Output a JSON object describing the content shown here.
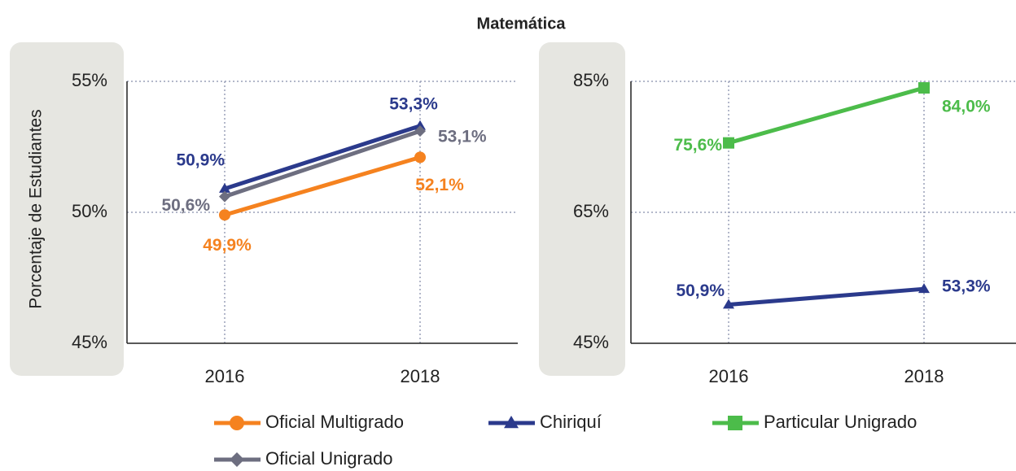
{
  "title": "Matemática",
  "chart_data": [
    {
      "type": "line",
      "ylabel": "Porcentaje de Estudiantes",
      "categories": [
        "2016",
        "2018"
      ],
      "ylim": [
        45,
        55
      ],
      "yticks": [
        {
          "value": 45,
          "label": "45%"
        },
        {
          "value": 50,
          "label": "50%"
        },
        {
          "value": 55,
          "label": "55%"
        }
      ],
      "grid": true,
      "series": [
        {
          "name": "Oficial Multigrado",
          "color": "#f5821f",
          "marker": "circle",
          "values": [
            49.9,
            52.1
          ],
          "value_labels": [
            "49,9%",
            "52,1%"
          ]
        },
        {
          "name": "Chiriquí",
          "color": "#2b3a8c",
          "marker": "triangle",
          "values": [
            50.9,
            53.3
          ],
          "value_labels": [
            "50,9%",
            "53,3%"
          ]
        },
        {
          "name": "Oficial Unigrado",
          "color": "#6d6e80",
          "marker": "diamond",
          "values": [
            50.6,
            53.1
          ],
          "value_labels": [
            "50,6%",
            "53,1%"
          ]
        }
      ]
    },
    {
      "type": "line",
      "categories": [
        "2016",
        "2018"
      ],
      "ylim": [
        45,
        85
      ],
      "yticks": [
        {
          "value": 45,
          "label": "45%"
        },
        {
          "value": 65,
          "label": "65%"
        },
        {
          "value": 85,
          "label": "85%"
        }
      ],
      "grid": true,
      "series": [
        {
          "name": "Chiriquí",
          "color": "#2b3a8c",
          "marker": "triangle",
          "values": [
            50.9,
            53.3
          ],
          "value_labels": [
            "50,9%",
            "53,3%"
          ]
        },
        {
          "name": "Particular Unigrado",
          "color": "#4cbc4a",
          "marker": "square",
          "values": [
            75.6,
            84.0
          ],
          "value_labels": [
            "75,6%",
            "84,0%"
          ]
        }
      ]
    }
  ]
}
